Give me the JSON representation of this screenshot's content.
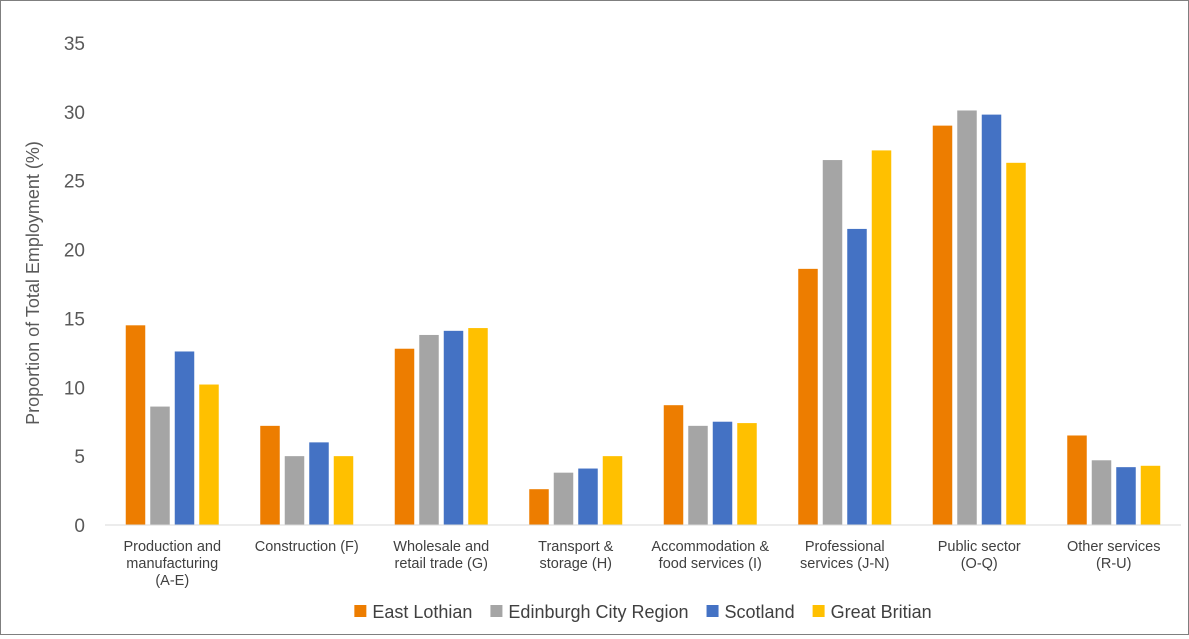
{
  "chart_data": {
    "type": "bar",
    "title": "",
    "xlabel": "",
    "ylabel": "Proportion of Total Employment  (%)",
    "ylim": [
      0,
      35
    ],
    "ytick_step": 5,
    "grid": false,
    "legend_position": "bottom",
    "categories": [
      [
        "Production and",
        "manufacturing",
        "(A-E)"
      ],
      [
        "Construction (F)"
      ],
      [
        "Wholesale and",
        "retail trade (G)"
      ],
      [
        "Transport &",
        "storage (H)"
      ],
      [
        "Accommodation &",
        "food services (I)"
      ],
      [
        "Professional",
        "services (J-N)"
      ],
      [
        "Public sector",
        "(O-Q)"
      ],
      [
        "Other services",
        "(R-U)"
      ]
    ],
    "series": [
      {
        "name": "East Lothian",
        "color": "#ED7D00",
        "values": [
          14.5,
          7.2,
          12.8,
          2.6,
          8.7,
          18.6,
          29.0,
          6.5
        ]
      },
      {
        "name": "Edinburgh City Region",
        "color": "#A5A5A5",
        "values": [
          8.6,
          5.0,
          13.8,
          3.8,
          7.2,
          26.5,
          30.1,
          4.7
        ]
      },
      {
        "name": "Scotland",
        "color": "#4472C4",
        "values": [
          12.6,
          6.0,
          14.1,
          4.1,
          7.5,
          21.5,
          29.8,
          4.2
        ]
      },
      {
        "name": "Great Britian",
        "color": "#FFC000",
        "values": [
          10.2,
          5.0,
          14.3,
          5.0,
          7.4,
          27.2,
          26.3,
          4.3
        ]
      }
    ]
  }
}
